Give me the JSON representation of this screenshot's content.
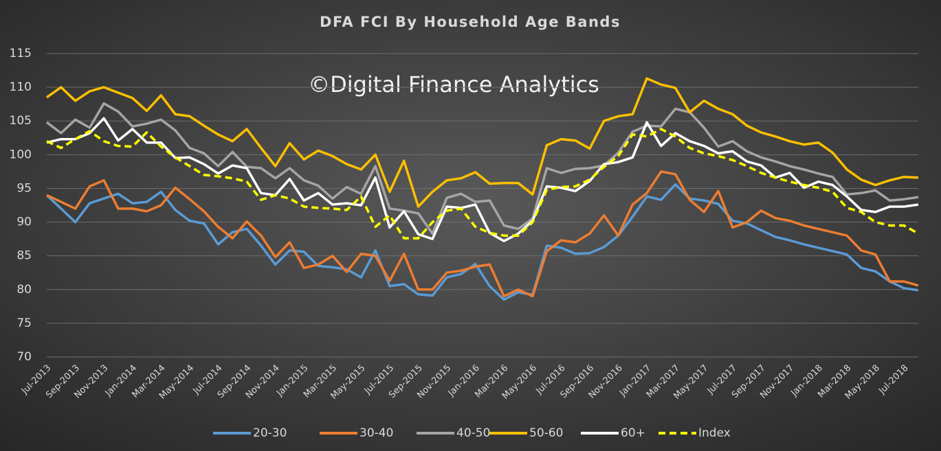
{
  "chart_data": {
    "type": "line",
    "title": "DFA FCI By Household Age Bands",
    "annotation": "©Digital Finance Analytics",
    "categories": [
      "Jul-2013",
      null,
      "Sep-2013",
      null,
      "Nov-2013",
      null,
      "Jan-2014",
      null,
      "Mar-2014",
      null,
      "May-2014",
      null,
      "Jul-2014",
      null,
      "Sep-2014",
      null,
      "Nov-2014",
      null,
      "Jan-2015",
      null,
      "Mar-2015",
      null,
      "May-2015",
      null,
      "Jul-2015",
      null,
      "Sep-2015",
      null,
      "Nov-2015",
      null,
      "Jan-2016",
      null,
      "Mar-2016",
      null,
      "May-2016",
      null,
      "Jul-2016",
      null,
      "Sep-2016",
      null,
      "Nov-2016",
      null,
      "Jan-2017",
      null,
      "Mar-2017",
      null,
      "May-2017",
      null,
      "Jul-2017",
      null,
      "Sep-2017",
      null,
      "Nov-2017",
      null,
      "Jan-2018",
      null,
      "Mar-2018",
      null,
      "May-2018",
      null,
      "Jul-2018",
      null
    ],
    "series": [
      {
        "name": "20-30",
        "color": "#5b9bd5",
        "values": [
          94,
          92,
          90,
          92.8,
          93.5,
          94.2,
          92.8,
          93,
          94.5,
          91.8,
          90.2,
          89.8,
          86.7,
          88.5,
          89,
          86.5,
          83.7,
          85.8,
          85.6,
          83.5,
          83.3,
          83,
          81.8,
          85.8,
          80.5,
          80.8,
          79.3,
          79.1,
          81.8,
          82.3,
          83.8,
          80.5,
          78.5,
          79.6,
          79.2,
          86.5,
          86.2,
          85.3,
          85.4,
          86.3,
          88,
          90.8,
          93.8,
          93.3,
          95.6,
          93.5,
          93.2,
          92.7,
          90.2,
          89.8,
          88.8,
          87.8,
          87.3,
          86.7,
          86.2,
          85.7,
          85.2,
          83.2,
          82.7,
          81.2,
          80.2,
          79.9
        ]
      },
      {
        "name": "30-40",
        "color": "#ed7d31",
        "values": [
          94,
          93,
          92,
          95.3,
          96.2,
          92,
          92,
          91.6,
          92.5,
          95.1,
          93.4,
          91.6,
          89.3,
          87.6,
          90.1,
          88,
          84.8,
          87,
          83.2,
          83.7,
          85,
          82.6,
          85.3,
          85,
          81.3,
          85.3,
          80,
          80,
          82.5,
          82.8,
          83.4,
          83.7,
          79,
          80,
          79,
          85.7,
          87.3,
          87,
          88.3,
          91,
          88,
          92.6,
          94.3,
          97.5,
          97.1,
          93.3,
          91.5,
          94.6,
          89.2,
          90,
          91.7,
          90.6,
          90.2,
          89.5,
          89,
          88.5,
          88,
          85.8,
          85.2,
          81.2,
          81.2,
          80.6
        ]
      },
      {
        "name": "40-50",
        "color": "#a5a5a5",
        "values": [
          104.8,
          103.2,
          105.2,
          104,
          107.6,
          106.4,
          104.2,
          104.6,
          105.2,
          103.6,
          101,
          100.2,
          98.3,
          100.4,
          98.2,
          98,
          96.5,
          98,
          96.2,
          95.4,
          93.5,
          95.2,
          94.2,
          98.3,
          92,
          91.7,
          91.3,
          88.3,
          93.6,
          94.2,
          93,
          93.2,
          89.5,
          89,
          90.5,
          98,
          97.3,
          97.9,
          98,
          98.4,
          100.3,
          103.4,
          104.3,
          104.2,
          106.8,
          106.3,
          104,
          101.2,
          102,
          100.5,
          99.6,
          99,
          98.3,
          97.8,
          97.2,
          96.7,
          94.1,
          94.3,
          94.7,
          93.2,
          93.4,
          93.7
        ]
      },
      {
        "name": "50-60",
        "color": "#ffc000",
        "values": [
          108.5,
          110,
          108,
          109.4,
          110,
          109.2,
          108.4,
          106.5,
          108.8,
          106,
          105.7,
          104.3,
          103,
          102,
          103.8,
          101,
          98.3,
          101.7,
          99.3,
          100.6,
          99.8,
          98.6,
          97.8,
          100,
          94.5,
          99.1,
          92.3,
          94.5,
          96.2,
          96.5,
          97.4,
          95.7,
          95.8,
          95.8,
          94.1,
          101.4,
          102.3,
          102.1,
          100.9,
          105,
          105.7,
          106,
          111.3,
          110.4,
          109.9,
          106.3,
          108,
          106.8,
          106,
          104.3,
          103.3,
          102.7,
          102,
          101.5,
          101.8,
          100.3,
          97.8,
          96.3,
          95.5,
          96.2,
          96.7,
          96.6
        ]
      },
      {
        "name": "60+",
        "color": "#ffffff",
        "values": [
          101.8,
          102.3,
          102.3,
          103.2,
          105.4,
          102.1,
          103.8,
          101.8,
          101.8,
          99.5,
          99.6,
          98.6,
          97.2,
          98.4,
          98,
          94.3,
          94,
          96.4,
          93.2,
          94.3,
          92.6,
          92.8,
          92.5,
          96.6,
          89.2,
          91.6,
          88.2,
          87.5,
          92.3,
          92.1,
          92.6,
          88.4,
          87.2,
          88.3,
          90.2,
          95.3,
          95.1,
          94.6,
          96.1,
          98.6,
          98.9,
          99.6,
          104.8,
          101.3,
          103.2,
          102,
          101.3,
          100.2,
          100.5,
          99,
          98.4,
          96.6,
          97.3,
          95.1,
          96,
          95.5,
          93.8,
          91.8,
          91.5,
          92.3,
          92.3,
          92.6
        ]
      },
      {
        "name": "Index",
        "color": "#ffff00",
        "dashed": true,
        "values": [
          102,
          101,
          102.3,
          103.5,
          102,
          101.3,
          101.2,
          103.3,
          101.2,
          99.6,
          98.3,
          97,
          96.8,
          96.5,
          96,
          93.3,
          94,
          93.5,
          92.3,
          92.1,
          92,
          91.8,
          93.8,
          89.3,
          91,
          87.6,
          87.6,
          90,
          91.7,
          92,
          89.3,
          88.4,
          88,
          88,
          90,
          94.8,
          95.2,
          95.3,
          96.3,
          98.2,
          99.8,
          103,
          102.7,
          103.8,
          102.7,
          101,
          100.2,
          99.8,
          99.2,
          98.3,
          97.3,
          96.6,
          96,
          95.5,
          95.1,
          94.5,
          92.1,
          91.5,
          90,
          89.5,
          89.5,
          88.3
        ]
      }
    ],
    "ylim": [
      70,
      115
    ],
    "yticks": [
      70,
      75,
      80,
      85,
      90,
      95,
      100,
      105,
      110,
      115
    ],
    "grid": true,
    "legend": "bottom"
  }
}
